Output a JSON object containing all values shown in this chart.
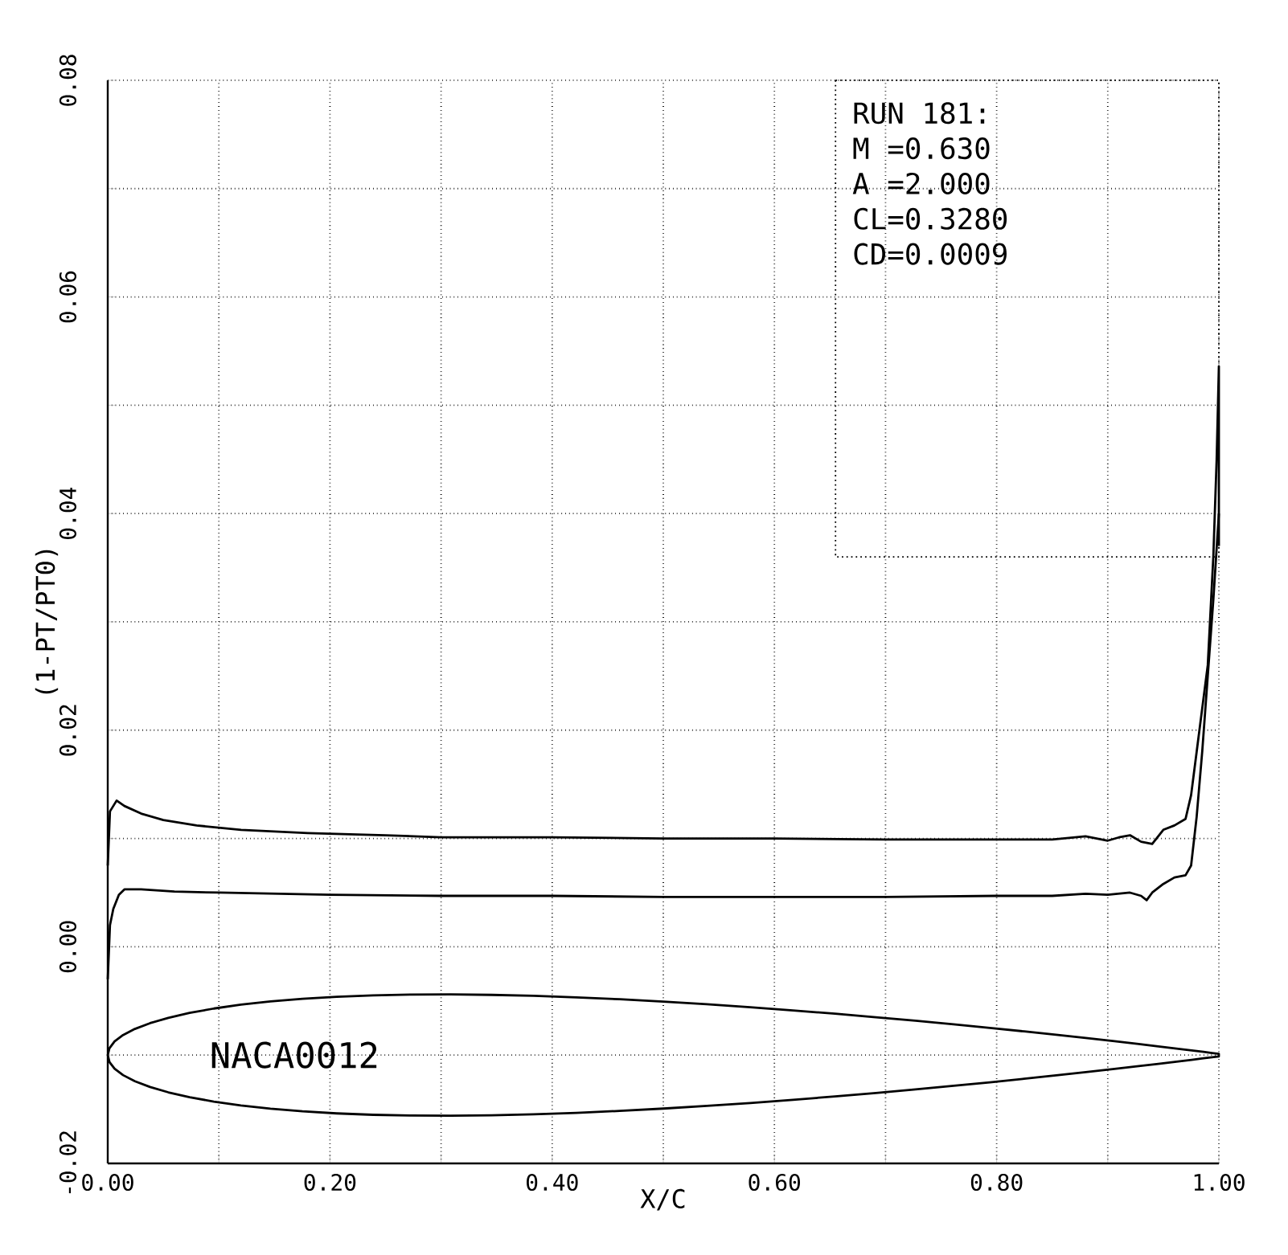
{
  "chart_data": {
    "type": "line",
    "xlabel": "X/C",
    "ylabel": "(1-PT/PT0)",
    "annotations": [
      "RUN 181:",
      "M =0.630",
      "A =2.000",
      "CL=0.3280",
      "CD=0.0009",
      "NACA0012"
    ],
    "xlim": [
      0,
      1
    ],
    "ylim": [
      -0.02,
      0.08
    ],
    "xticks": [
      {
        "value": 0,
        "label": "0.00"
      },
      {
        "value": 0.1,
        "label": null
      },
      {
        "value": 0.2,
        "label": "0.20"
      },
      {
        "value": 0.3,
        "label": null
      },
      {
        "value": 0.4,
        "label": "0.40"
      },
      {
        "value": 0.5,
        "label": null
      },
      {
        "value": 0.6,
        "label": "0.60"
      },
      {
        "value": 0.7,
        "label": null
      },
      {
        "value": 0.8,
        "label": "0.80"
      },
      {
        "value": 0.9,
        "label": null
      },
      {
        "value": 1,
        "label": "1.00"
      }
    ],
    "yticks": [
      {
        "value": -0.02,
        "label": "-0.02"
      },
      {
        "value": -0.01,
        "label": null
      },
      {
        "value": 0,
        "label": "0.00"
      },
      {
        "value": 0.01,
        "label": null
      },
      {
        "value": 0.02,
        "label": "0.02"
      },
      {
        "value": 0.03,
        "label": null
      },
      {
        "value": 0.04,
        "label": "0.04"
      },
      {
        "value": 0.05,
        "label": null
      },
      {
        "value": 0.06,
        "label": "0.06"
      },
      {
        "value": 0.07,
        "label": null
      },
      {
        "value": 0.08,
        "label": "0.08"
      }
    ],
    "grid": true,
    "line_style": "solid",
    "series": [
      {
        "color": "#000000",
        "x": [
          0,
          0.002,
          0.008,
          0.015,
          0.03,
          0.05,
          0.08,
          0.12,
          0.18,
          0.25,
          0.3,
          0.4,
          0.5,
          0.6,
          0.7,
          0.8,
          0.85,
          0.88,
          0.9,
          0.91,
          0.92,
          0.93,
          0.94,
          0.95,
          0.96,
          0.97,
          0.975,
          0.98,
          0.99,
          0.995,
          0.998,
          1.0,
          1.0
        ],
        "values": [
          0.0075,
          0.0125,
          0.0135,
          0.013,
          0.0123,
          0.0117,
          0.0112,
          0.0108,
          0.0105,
          0.0103,
          0.0101,
          0.0101,
          0.01,
          0.01,
          0.0099,
          0.0099,
          0.0099,
          0.0102,
          0.0098,
          0.0101,
          0.0103,
          0.0097,
          0.0095,
          0.0108,
          0.0112,
          0.0118,
          0.014,
          0.018,
          0.026,
          0.036,
          0.045,
          0.0536,
          0.037
        ]
      },
      {
        "color": "#000000",
        "x": [
          0,
          0.002,
          0.005,
          0.01,
          0.015,
          0.03,
          0.06,
          0.1,
          0.2,
          0.3,
          0.4,
          0.5,
          0.6,
          0.7,
          0.8,
          0.85,
          0.88,
          0.9,
          0.92,
          0.93,
          0.935,
          0.94,
          0.95,
          0.96,
          0.97,
          0.975,
          0.98,
          0.985,
          0.99,
          0.995,
          1.0
        ],
        "values": [
          -0.003,
          0.002,
          0.0035,
          0.0048,
          0.0053,
          0.0053,
          0.0051,
          0.005,
          0.0048,
          0.0047,
          0.0047,
          0.0046,
          0.0046,
          0.0046,
          0.0047,
          0.0047,
          0.0049,
          0.0048,
          0.005,
          0.0047,
          0.0043,
          0.005,
          0.0058,
          0.0064,
          0.0066,
          0.0075,
          0.012,
          0.018,
          0.025,
          0.032,
          0.04
        ]
      }
    ]
  }
}
